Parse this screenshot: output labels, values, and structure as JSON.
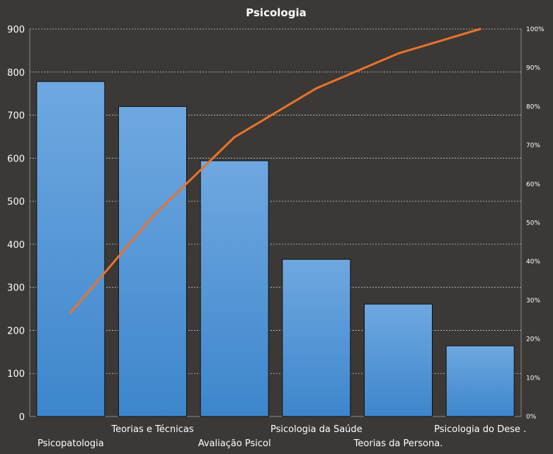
{
  "chart_data": {
    "type": "bar",
    "title": "Psicologia",
    "categories": [
      "Psicopatologia",
      "Teorias e Técnicas",
      "Avaliação Psicol",
      "Psicologia da Saúde",
      "Teorias da Persona.",
      "Psicologia do Dese ."
    ],
    "series": [
      {
        "type": "bar",
        "values": [
          778,
          720,
          594,
          365,
          261,
          164
        ]
      },
      {
        "type": "line",
        "axis": "right",
        "values": [
          26.8,
          51.6,
          72.1,
          84.7,
          93.7,
          100
        ]
      }
    ],
    "ylim": [
      0,
      900
    ],
    "yticks": [
      "0",
      "100",
      "200",
      "300",
      "400",
      "500",
      "600",
      "700",
      "800",
      "900"
    ],
    "y2lim": [
      0,
      100
    ],
    "y2ticks": [
      "0%",
      "10%",
      "20%",
      "30%",
      "40%",
      "50%",
      "60%",
      "70%",
      "80%",
      "90%",
      "100%"
    ],
    "grid": true,
    "legend": "none",
    "colors": {
      "background": "#3b3836",
      "bar_top": "#6fa8e0",
      "bar_bottom": "#3d86cc",
      "bar_border": "#111111",
      "line": "#e8732a",
      "text": "#ffffff",
      "grid": "#cfcfcf",
      "axis": "#8a8a8a"
    }
  }
}
